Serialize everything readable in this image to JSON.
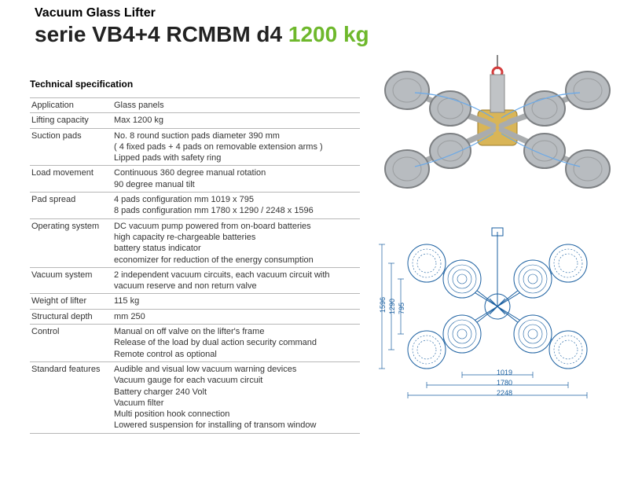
{
  "header": {
    "subtitle": "Vacuum Glass Lifter",
    "title_prefix": "serie VB4+4 RCMBM d4",
    "capacity": "1200 kg"
  },
  "spec": {
    "heading": "Technical specification",
    "rows": [
      {
        "label": "Application",
        "value": "Glass panels"
      },
      {
        "label": "Lifting capacity",
        "value": "Max 1200 kg"
      },
      {
        "label": "Suction pads",
        "value": "No. 8 round suction pads diameter 390 mm\n( 4 fixed pads + 4 pads on removable extension arms )\nLipped pads with safety ring"
      },
      {
        "label": "Load movement",
        "value": "Continuous 360 degree manual rotation\n90 degree manual tilt"
      },
      {
        "label": "Pad spread",
        "value": "4 pads configuration mm 1019 x 795\n8 pads configuration mm 1780 x 1290  /  2248 x 1596"
      },
      {
        "label": "Operating system",
        "value": "DC vacuum pump powered from on-board batteries\nhigh capacity re-chargeable batteries\nbattery status indicator\neconomizer for reduction of the energy consumption"
      },
      {
        "label": "Vacuum system",
        "value": "2 independent vacuum circuits, each vacuum circuit with\nvacuum reserve and non return valve"
      },
      {
        "label": "Weight of lifter",
        "value": "115 kg"
      },
      {
        "label": "Structural depth",
        "value": "mm 250"
      },
      {
        "label": "Control",
        "value": "Manual on off valve on the lifter's frame\nRelease of the load by dual action security command\nRemote control as optional"
      },
      {
        "label": "Standard features",
        "value": "Audible and visual low vacuum warning devices\nVacuum gauge for each vacuum circuit\nBattery charger 240 Volt\nVacuum filter\nMulti position hook connection\nLowered suspension for installing of transom window"
      }
    ]
  },
  "diagram": {
    "stroke": "#1a5fa0",
    "fill": "#eef4f9",
    "pad_fill": "#d9e3ec",
    "dims": {
      "h1": "795",
      "h2": "1290",
      "h3": "1596",
      "w1": "1019",
      "w2": "1780",
      "w3": "2248"
    }
  },
  "photo": {
    "pad_color": "#b8bcc0",
    "pad_rim": "#888b8e",
    "arm_color": "#cfd2d4",
    "hub_color": "#d9b557",
    "hook_color": "#d43c3c"
  }
}
